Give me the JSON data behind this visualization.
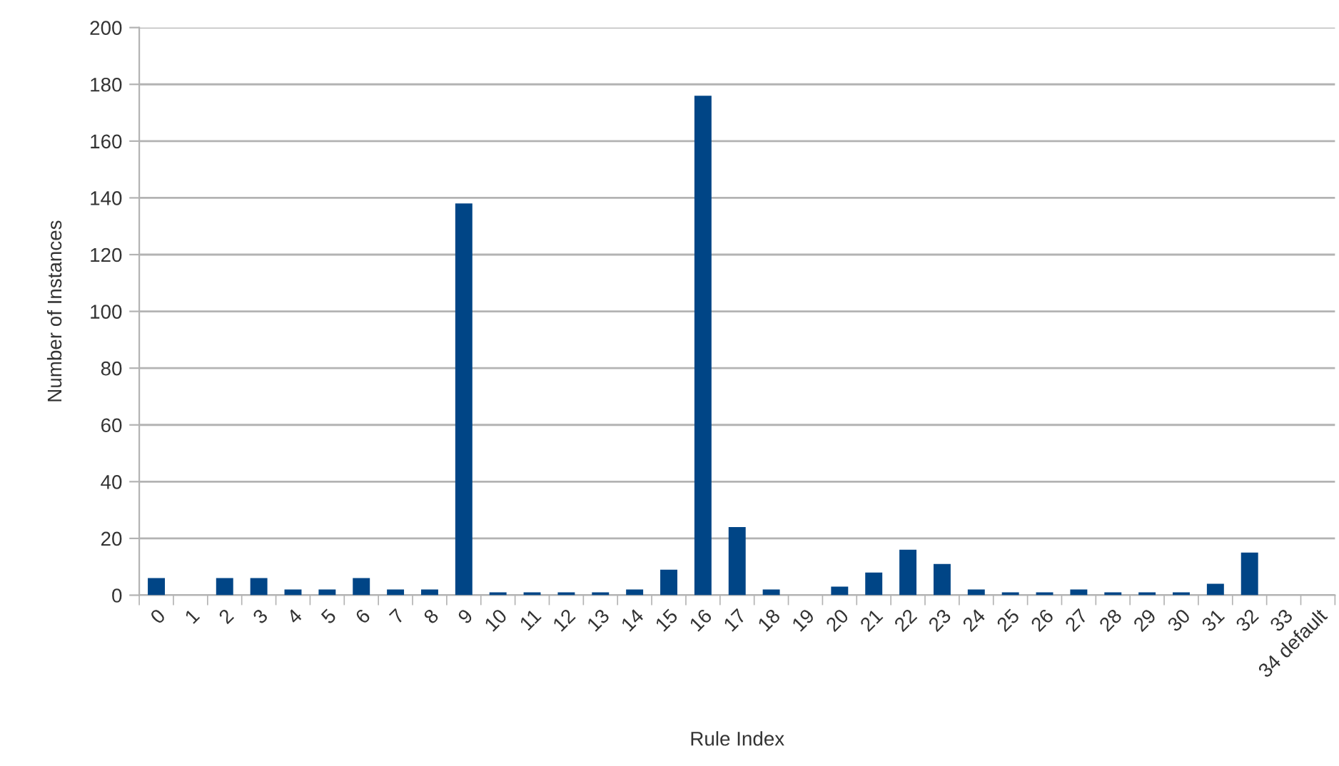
{
  "chart_data": {
    "type": "bar",
    "xlabel": "Rule Index",
    "ylabel": "Number of Instances",
    "categories": [
      "0",
      "1",
      "2",
      "3",
      "4",
      "5",
      "6",
      "7",
      "8",
      "9",
      "10",
      "11",
      "12",
      "13",
      "14",
      "15",
      "16",
      "17",
      "18",
      "19",
      "20",
      "21",
      "22",
      "23",
      "24",
      "25",
      "26",
      "27",
      "28",
      "29",
      "30",
      "31",
      "32",
      "33",
      "34 default"
    ],
    "values": [
      6,
      0,
      6,
      6,
      2,
      2,
      6,
      2,
      2,
      138,
      1,
      1,
      1,
      1,
      2,
      9,
      176,
      24,
      2,
      0,
      3,
      8,
      16,
      11,
      2,
      1,
      1,
      2,
      1,
      1,
      1,
      4,
      15,
      0,
      0
    ],
    "color": "#004586",
    "ylim": [
      0,
      200
    ],
    "yticks": [
      0,
      20,
      40,
      60,
      80,
      100,
      120,
      140,
      160,
      180,
      200
    ],
    "grid": "y",
    "legend": false
  }
}
